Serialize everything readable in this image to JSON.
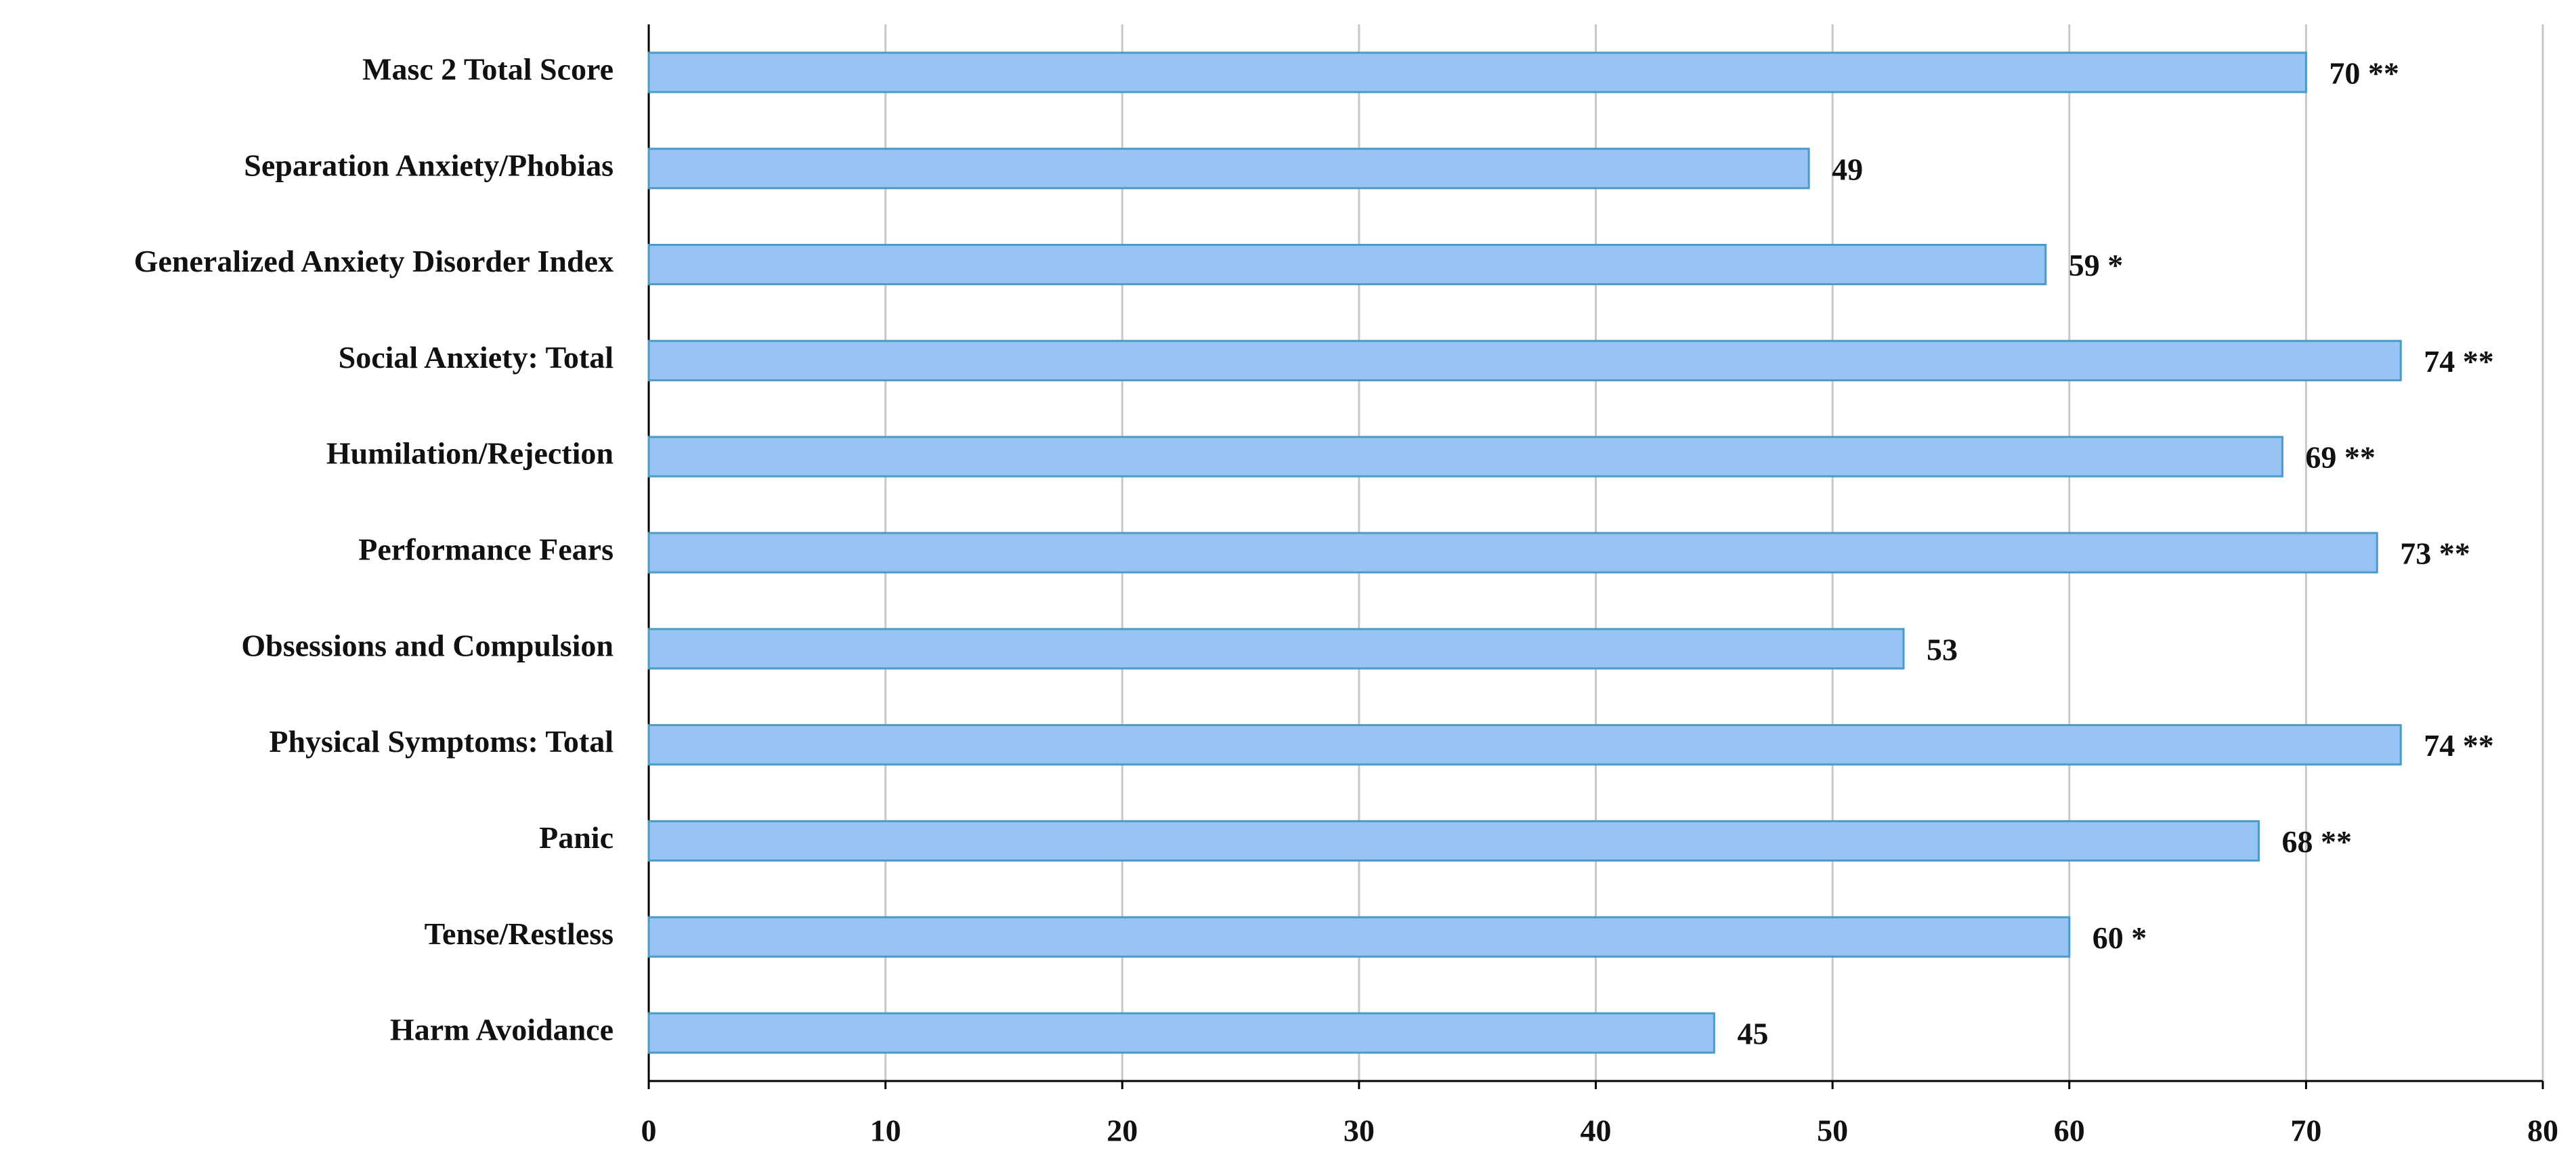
{
  "chart_data": {
    "type": "hbar",
    "categories": [
      "Masc 2 Total Score",
      "Separation Anxiety/Phobias",
      "Generalized Anxiety Disorder Index",
      "Social Anxiety: Total",
      "Humilation/Rejection",
      "Performance Fears",
      "Obsessions and Compulsion",
      "Physical Symptoms: Total",
      "Panic",
      "Tense/Restless",
      "Harm Avoidance"
    ],
    "values": [
      70,
      49,
      59,
      74,
      69,
      73,
      53,
      74,
      68,
      60,
      45
    ],
    "value_labels": [
      "70 **",
      "49",
      "59 *",
      "74 **",
      "69 **",
      "73 **",
      "53",
      "74 **",
      "68 **",
      "60 *",
      "45"
    ],
    "color": "#97c3f5",
    "edge_color": "#4a9cc6",
    "xlim": [
      0,
      80
    ],
    "xticks": [
      0,
      10,
      20,
      30,
      40,
      50,
      60,
      70,
      80
    ],
    "grid": true
  }
}
